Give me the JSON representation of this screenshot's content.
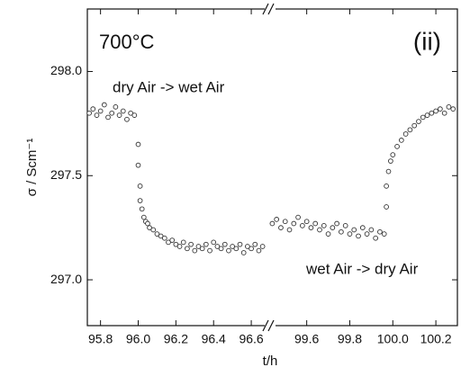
{
  "chart_data": {
    "type": "scatter",
    "ylabel": "σ / Scm⁻¹",
    "xlabel": "t/h",
    "annotations": [
      "700°C",
      "(ii)",
      "dry Air -> wet Air",
      "wet Air -> dry Air"
    ],
    "ylim": [
      296.78,
      298.3
    ],
    "yticks": [
      {
        "value": 297.0,
        "label": "297.0"
      },
      {
        "value": 297.5,
        "label": "297.5"
      },
      {
        "value": 298.0,
        "label": "298.0"
      }
    ],
    "x_segments": [
      {
        "xlim": [
          95.73,
          96.7
        ],
        "xticks": [
          95.8,
          {
            "value": 96.0,
            "label": "96.0"
          },
          96.2,
          96.4,
          96.6
        ]
      },
      {
        "xlim": [
          99.43,
          100.3
        ],
        "xticks": [
          99.6,
          99.8,
          {
            "value": 100.0,
            "label": "100.0"
          },
          100.2
        ]
      }
    ],
    "series": [
      {
        "name": "σ",
        "color": "#333333",
        "x": [
          95.74,
          95.76,
          95.78,
          95.8,
          95.82,
          95.84,
          95.86,
          95.88,
          95.9,
          95.92,
          95.94,
          95.96,
          95.98,
          96.0,
          96.0,
          96.01,
          96.01,
          96.02,
          96.03,
          96.04,
          96.05,
          96.06,
          96.08,
          96.1,
          96.12,
          96.14,
          96.16,
          96.18,
          96.2,
          96.22,
          96.24,
          96.26,
          96.28,
          96.3,
          96.32,
          96.34,
          96.36,
          96.38,
          96.4,
          96.42,
          96.44,
          96.46,
          96.48,
          96.5,
          96.52,
          96.54,
          96.56,
          96.58,
          96.6,
          96.62,
          96.64,
          96.66,
          99.44,
          99.46,
          99.48,
          99.5,
          99.52,
          99.54,
          99.56,
          99.58,
          99.6,
          99.62,
          99.64,
          99.66,
          99.68,
          99.7,
          99.72,
          99.74,
          99.76,
          99.78,
          99.8,
          99.82,
          99.84,
          99.86,
          99.88,
          99.9,
          99.92,
          99.94,
          99.96,
          99.97,
          99.97,
          99.98,
          99.99,
          100.0,
          100.02,
          100.04,
          100.06,
          100.08,
          100.1,
          100.12,
          100.14,
          100.16,
          100.18,
          100.2,
          100.22,
          100.24,
          100.26,
          100.28
        ],
        "values": [
          297.8,
          297.82,
          297.79,
          297.81,
          297.84,
          297.78,
          297.8,
          297.83,
          297.79,
          297.81,
          297.77,
          297.8,
          297.79,
          297.65,
          297.55,
          297.45,
          297.38,
          297.34,
          297.3,
          297.28,
          297.27,
          297.25,
          297.24,
          297.22,
          297.21,
          297.2,
          297.18,
          297.19,
          297.17,
          297.16,
          297.18,
          297.15,
          297.17,
          297.14,
          297.16,
          297.15,
          297.17,
          297.14,
          297.18,
          297.16,
          297.15,
          297.17,
          297.14,
          297.16,
          297.15,
          297.17,
          297.13,
          297.16,
          297.15,
          297.17,
          297.14,
          297.16,
          297.27,
          297.29,
          297.25,
          297.28,
          297.24,
          297.27,
          297.3,
          297.26,
          297.28,
          297.25,
          297.27,
          297.24,
          297.26,
          297.22,
          297.25,
          297.27,
          297.23,
          297.26,
          297.22,
          297.24,
          297.21,
          297.25,
          297.22,
          297.24,
          297.2,
          297.23,
          297.22,
          297.35,
          297.45,
          297.52,
          297.57,
          297.6,
          297.64,
          297.67,
          297.7,
          297.72,
          297.74,
          297.76,
          297.78,
          297.79,
          297.8,
          297.81,
          297.82,
          297.8,
          297.83,
          297.82
        ]
      }
    ]
  }
}
